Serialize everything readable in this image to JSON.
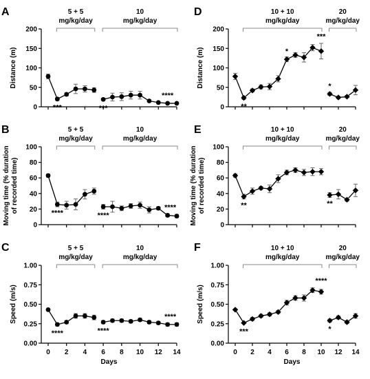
{
  "chart_data": [
    {
      "panel": "A",
      "type": "line",
      "marker": "circle",
      "ylabel": "Distance (m)",
      "xlabel": "",
      "ylim": [
        0,
        200
      ],
      "yticks": [
        0,
        50,
        100,
        150,
        200
      ],
      "xlim": [
        0,
        14
      ],
      "xticks": [
        0,
        2,
        4,
        6,
        8,
        10,
        12,
        14
      ],
      "show_xticks": false,
      "segments": [
        {
          "x": [
            0,
            1,
            2,
            3,
            4,
            5
          ],
          "y": [
            78,
            20,
            32,
            46,
            46,
            43
          ],
          "err": [
            6,
            4,
            4,
            12,
            8,
            6
          ]
        },
        {
          "x": [
            6,
            7,
            8,
            9,
            10,
            11,
            12,
            13,
            14
          ],
          "y": [
            19,
            25,
            26,
            30,
            30,
            15,
            11,
            9,
            9
          ],
          "err": [
            3,
            10,
            10,
            10,
            10,
            3,
            2,
            2,
            2
          ]
        }
      ],
      "brackets": [
        {
          "x1": 1,
          "x2": 5,
          "label": [
            "5 + 5",
            "mg/kg/day"
          ]
        },
        {
          "x1": 6,
          "x2": 14,
          "label": [
            "10",
            "mg/kg/day"
          ]
        }
      ],
      "sig": [
        {
          "x": 1,
          "y": 20,
          "text": "***",
          "pos": "below"
        },
        {
          "x": 6,
          "y": 19,
          "text": "***",
          "pos": "below"
        },
        {
          "x": 13,
          "y": 9,
          "text": "****",
          "pos": "above"
        }
      ]
    },
    {
      "panel": "B",
      "type": "line",
      "marker": "circle",
      "ylabel": [
        "Moving time (% duration",
        "of recorded time)"
      ],
      "xlabel": "",
      "ylim": [
        0,
        100
      ],
      "yticks": [
        0,
        20,
        40,
        60,
        80,
        100
      ],
      "xlim": [
        0,
        14
      ],
      "xticks": [
        0,
        2,
        4,
        6,
        8,
        10,
        12,
        14
      ],
      "show_xticks": false,
      "segments": [
        {
          "x": [
            0,
            1,
            2,
            3,
            4,
            5
          ],
          "y": [
            63,
            26,
            25,
            26,
            39,
            43
          ],
          "err": [
            2,
            3,
            5,
            7,
            6,
            4
          ]
        },
        {
          "x": [
            6,
            7,
            8,
            9,
            10,
            11,
            12,
            13,
            14
          ],
          "y": [
            23,
            23,
            21,
            24,
            25,
            19,
            21,
            12,
            11
          ],
          "err": [
            3,
            7,
            3,
            3,
            4,
            4,
            2,
            2,
            2
          ]
        }
      ],
      "brackets": [
        {
          "x1": 1,
          "x2": 5,
          "label": [
            "5 + 5",
            "mg/kg/day"
          ]
        },
        {
          "x1": 6,
          "x2": 14,
          "label": [
            "10",
            "mg/kg/day"
          ]
        }
      ],
      "sig": [
        {
          "x": 1,
          "y": 26,
          "text": "****",
          "pos": "below"
        },
        {
          "x": 6,
          "y": 23,
          "text": "****",
          "pos": "below"
        },
        {
          "x": 13.3,
          "y": 12,
          "text": "****",
          "pos": "above"
        }
      ]
    },
    {
      "panel": "C",
      "type": "line",
      "marker": "circle",
      "ylabel": "Speed (m/s)",
      "xlabel": "Days",
      "ylim": [
        0,
        1.0
      ],
      "yticks": [
        "0.00",
        "0.25",
        "0.50",
        "0.75",
        "1.00"
      ],
      "xlim": [
        0,
        14
      ],
      "xticks": [
        0,
        2,
        4,
        6,
        8,
        10,
        12,
        14
      ],
      "show_xticks": true,
      "segments": [
        {
          "x": [
            0,
            1,
            2,
            3,
            4,
            5
          ],
          "y": [
            0.43,
            0.24,
            0.27,
            0.35,
            0.35,
            0.33
          ],
          "err": [
            0.01,
            0.02,
            0.02,
            0.03,
            0.03,
            0.03
          ]
        },
        {
          "x": [
            6,
            7,
            8,
            9,
            10,
            11,
            12,
            13,
            14
          ],
          "y": [
            0.27,
            0.29,
            0.29,
            0.28,
            0.3,
            0.27,
            0.26,
            0.24,
            0.24
          ],
          "err": [
            0.02,
            0.02,
            0.02,
            0.02,
            0.02,
            0.02,
            0.02,
            0.02,
            0.02
          ]
        }
      ],
      "brackets": [
        {
          "x1": 1,
          "x2": 5,
          "label": [
            "5 + 5",
            "mg/kg/day"
          ]
        },
        {
          "x1": 6,
          "x2": 14,
          "label": [
            "10",
            "mg/kg/day"
          ]
        }
      ],
      "sig": [
        {
          "x": 1,
          "y": 0.24,
          "text": "****",
          "pos": "below"
        },
        {
          "x": 6,
          "y": 0.27,
          "text": "****",
          "pos": "below"
        },
        {
          "x": 13.3,
          "y": 0.24,
          "text": "****",
          "pos": "above"
        }
      ]
    },
    {
      "panel": "D",
      "type": "line",
      "marker": "diamond",
      "ylabel": "Distance (m)",
      "xlabel": "",
      "ylim": [
        0,
        200
      ],
      "yticks": [
        0,
        50,
        100,
        150,
        200
      ],
      "xlim": [
        0,
        14
      ],
      "xticks": [
        0,
        2,
        4,
        6,
        8,
        10,
        12,
        14
      ],
      "show_xticks": false,
      "segments": [
        {
          "x": [
            0,
            1,
            2,
            3,
            4,
            5,
            6,
            7,
            8,
            9,
            10
          ],
          "y": [
            78,
            23,
            42,
            51,
            52,
            72,
            122,
            133,
            127,
            152,
            143
          ],
          "err": [
            8,
            4,
            4,
            5,
            8,
            8,
            6,
            6,
            12,
            8,
            20
          ]
        },
        {
          "x": [
            11,
            12,
            13,
            14
          ],
          "y": [
            33,
            24,
            26,
            43
          ],
          "err": [
            4,
            3,
            3,
            12
          ]
        }
      ],
      "brackets": [
        {
          "x1": 1,
          "x2": 10,
          "label": [
            "10 + 10",
            "mg/kg/day"
          ]
        },
        {
          "x1": 11,
          "x2": 14,
          "label": [
            "20",
            "mg/kg/day"
          ]
        }
      ],
      "sig": [
        {
          "x": 1,
          "y": 23,
          "text": "**",
          "pos": "below"
        },
        {
          "x": 6,
          "y": 122,
          "text": "*",
          "pos": "above"
        },
        {
          "x": 10,
          "y": 160,
          "text": "***",
          "pos": "above"
        },
        {
          "x": 11,
          "y": 33,
          "text": "*",
          "pos": "above"
        }
      ]
    },
    {
      "panel": "E",
      "type": "line",
      "marker": "diamond",
      "ylabel": [
        "Moving time (% duration",
        "of recorded time)"
      ],
      "xlabel": "",
      "ylim": [
        0,
        100
      ],
      "yticks": [
        0,
        20,
        40,
        60,
        80,
        100
      ],
      "xlim": [
        0,
        14
      ],
      "xticks": [
        0,
        2,
        4,
        6,
        8,
        10,
        12,
        14
      ],
      "show_xticks": false,
      "segments": [
        {
          "x": [
            0,
            1,
            2,
            3,
            4,
            5,
            6,
            7,
            8,
            9,
            10
          ],
          "y": [
            63,
            36,
            43,
            47,
            46,
            59,
            67,
            70,
            67,
            68,
            68
          ],
          "err": [
            2,
            3,
            4,
            2,
            5,
            5,
            3,
            3,
            4,
            5,
            4
          ]
        },
        {
          "x": [
            11,
            12,
            13,
            14
          ],
          "y": [
            38,
            39,
            32,
            44
          ],
          "err": [
            3,
            6,
            2,
            8
          ]
        }
      ],
      "brackets": [
        {
          "x1": 1,
          "x2": 10,
          "label": [
            "10 + 10",
            "mg/kg/day"
          ]
        },
        {
          "x1": 11,
          "x2": 14,
          "label": [
            "20",
            "mg/kg/day"
          ]
        }
      ],
      "sig": [
        {
          "x": 1,
          "y": 36,
          "text": "**",
          "pos": "below"
        },
        {
          "x": 11,
          "y": 38,
          "text": "**",
          "pos": "below"
        }
      ]
    },
    {
      "panel": "F",
      "type": "line",
      "marker": "diamond",
      "ylabel": "Speed (m/s)",
      "xlabel": "Days",
      "ylim": [
        0,
        1.0
      ],
      "yticks": [
        "0.00",
        "0.25",
        "0.50",
        "0.75",
        "1.00"
      ],
      "xlim": [
        0,
        14
      ],
      "xticks": [
        0,
        2,
        4,
        6,
        8,
        10,
        12,
        14
      ],
      "show_xticks": true,
      "segments": [
        {
          "x": [
            0,
            1,
            2,
            3,
            4,
            5,
            6,
            7,
            8,
            9,
            10
          ],
          "y": [
            0.43,
            0.26,
            0.31,
            0.35,
            0.37,
            0.4,
            0.52,
            0.58,
            0.58,
            0.68,
            0.66
          ],
          "err": [
            0.01,
            0.01,
            0.02,
            0.02,
            0.02,
            0.02,
            0.03,
            0.03,
            0.04,
            0.03,
            0.03
          ]
        },
        {
          "x": [
            11,
            12,
            13,
            14
          ],
          "y": [
            0.29,
            0.33,
            0.27,
            0.35
          ],
          "err": [
            0.02,
            0.02,
            0.02,
            0.03
          ]
        }
      ],
      "brackets": [
        {
          "x1": 1,
          "x2": 10,
          "label": [
            "10 + 10",
            "mg/kg/day"
          ]
        },
        {
          "x1": 11,
          "x2": 14,
          "label": [
            "20",
            "mg/kg/day"
          ]
        }
      ],
      "sig": [
        {
          "x": 1,
          "y": 0.26,
          "text": "***",
          "pos": "below"
        },
        {
          "x": 10,
          "y": 0.7,
          "text": "****",
          "pos": "above"
        },
        {
          "x": 11,
          "y": 0.29,
          "text": "*",
          "pos": "below"
        }
      ]
    }
  ]
}
